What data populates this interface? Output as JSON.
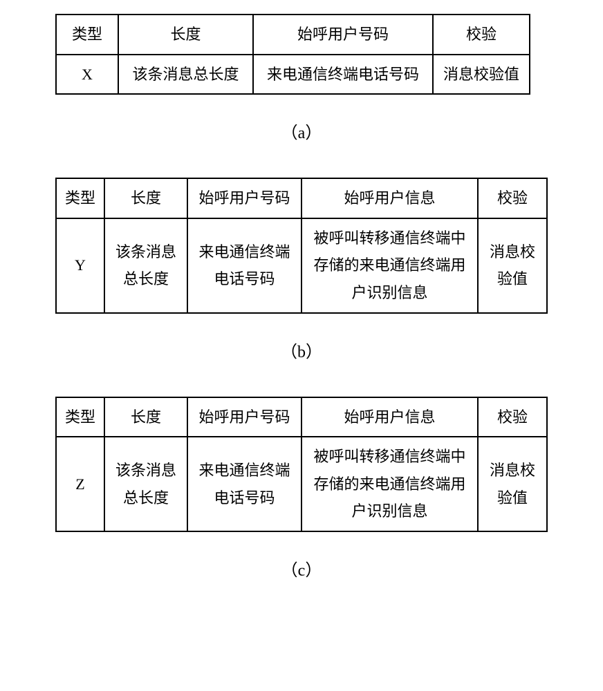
{
  "tables": {
    "a": {
      "header": [
        "类型",
        "长度",
        "始呼用户号码",
        "校验"
      ],
      "row": [
        "X",
        "该条消息总长度",
        "来电通信终端电话号码",
        "消息校验值"
      ],
      "caption": "（a）"
    },
    "b": {
      "header": [
        "类型",
        "长度",
        "始呼用户号码",
        "始呼用户信息",
        "校验"
      ],
      "row": [
        "Y",
        "该条消息总长度",
        "来电通信终端电话号码",
        "被呼叫转移通信终端中存储的来电通信终端用户识别信息",
        "消息校验值"
      ],
      "caption": "（b）"
    },
    "c": {
      "header": [
        "类型",
        "长度",
        "始呼用户号码",
        "始呼用户信息",
        "校验"
      ],
      "row": [
        "Z",
        "该条消息总长度",
        "来电通信终端电话号码",
        "被呼叫转移通信终端中存储的来电通信终端用户识别信息",
        "消息校验值"
      ],
      "caption": "（c）"
    }
  },
  "style": {
    "background_color": "#ffffff",
    "border_color": "#000000",
    "text_color": "#000000",
    "font_family": "SimSun",
    "cell_fontsize": 22,
    "caption_fontsize": 24,
    "border_width": 2,
    "line_height": 1.8
  }
}
